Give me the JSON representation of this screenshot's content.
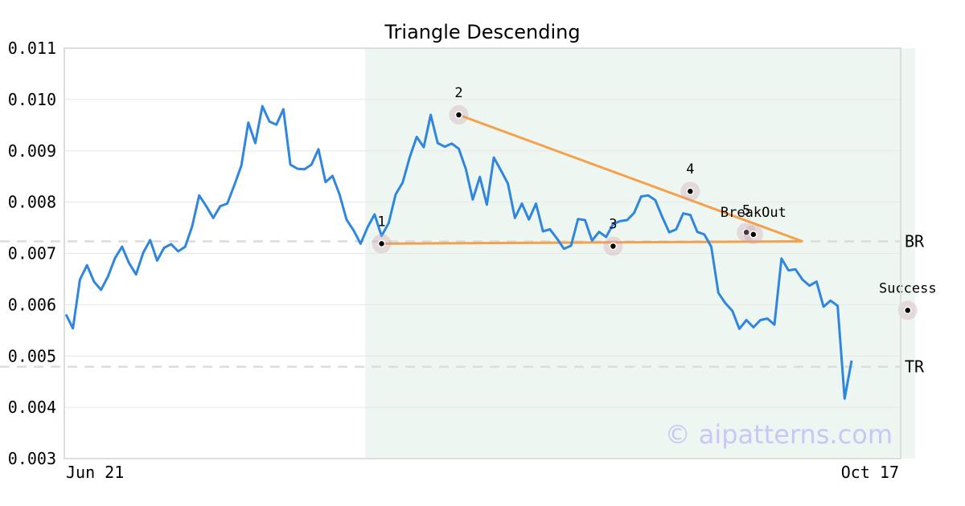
{
  "chart_data": {
    "type": "line",
    "title": "Triangle Descending",
    "xlabel": "",
    "ylabel": "",
    "ylim": [
      0.003,
      0.011
    ],
    "y_ticks": [
      "0.003",
      "0.004",
      "0.005",
      "0.006",
      "0.007",
      "0.008",
      "0.009",
      "0.010",
      "0.011"
    ],
    "x_tick_labels": [
      {
        "index": 0,
        "label": "Jun 21"
      },
      {
        "index": 121,
        "label": "Oct 17"
      }
    ],
    "grid": "horizontal",
    "series": [
      {
        "color": "#2e86de",
        "values": [
          0.00581,
          0.00554,
          0.00649,
          0.00677,
          0.00645,
          0.00629,
          0.00655,
          0.00691,
          0.00713,
          0.00681,
          0.00659,
          0.00701,
          0.00726,
          0.00686,
          0.00711,
          0.00718,
          0.00704,
          0.00713,
          0.00753,
          0.00813,
          0.00792,
          0.00769,
          0.00792,
          0.00797,
          0.00833,
          0.00871,
          0.00955,
          0.00915,
          0.00987,
          0.00957,
          0.00951,
          0.00981,
          0.00873,
          0.00865,
          0.00864,
          0.00873,
          0.00903,
          0.00839,
          0.00851,
          0.00815,
          0.00766,
          0.00745,
          0.00719,
          0.00751,
          0.00776,
          0.00734,
          0.00759,
          0.00815,
          0.00838,
          0.00887,
          0.00927,
          0.00907,
          0.0097,
          0.00915,
          0.00908,
          0.00914,
          0.00904,
          0.00865,
          0.00805,
          0.00849,
          0.00795,
          0.00887,
          0.00862,
          0.00836,
          0.00769,
          0.00797,
          0.00766,
          0.00797,
          0.00743,
          0.00747,
          0.00729,
          0.00709,
          0.00715,
          0.00767,
          0.00765,
          0.00725,
          0.00742,
          0.00732,
          0.00757,
          0.00763,
          0.00765,
          0.00779,
          0.00811,
          0.00813,
          0.00804,
          0.00771,
          0.00741,
          0.00747,
          0.00778,
          0.00775,
          0.00742,
          0.00737,
          0.00713,
          0.00623,
          0.00603,
          0.00588,
          0.00553,
          0.0057,
          0.00556,
          0.0057,
          0.00573,
          0.00561,
          0.0069,
          0.00667,
          0.00669,
          0.00649,
          0.00637,
          0.00645,
          0.00596,
          0.00608,
          0.00598,
          0.00417,
          0.00491
        ]
      }
    ],
    "shaded_region": {
      "start_index": 43,
      "end_index": 122
    },
    "levels": [
      {
        "label": "BR",
        "value": 0.007235
      },
      {
        "label": "TR",
        "value": 0.00479
      }
    ],
    "pattern_lines": [
      {
        "color": "#f5a04a",
        "points": [
          [
            45,
            0.00719
          ],
          [
            105,
            0.007235
          ]
        ]
      },
      {
        "color": "#f5a04a",
        "points": [
          [
            56,
            0.0097
          ],
          [
            105,
            0.007235
          ]
        ]
      }
    ],
    "pattern_points": [
      {
        "label": "1",
        "index": 45,
        "value": 0.00719
      },
      {
        "label": "2",
        "index": 56,
        "value": 0.0097
      },
      {
        "label": "3",
        "index": 78,
        "value": 0.00714
      },
      {
        "label": "4",
        "index": 89,
        "value": 0.00821
      },
      {
        "label": "5",
        "index": 97,
        "value": 0.00741
      },
      {
        "label": "BreakOut",
        "index": 98,
        "value": 0.00737
      },
      {
        "label": "Success",
        "index": 120,
        "value": 0.00589
      }
    ],
    "watermark": "© aipatterns.com"
  }
}
